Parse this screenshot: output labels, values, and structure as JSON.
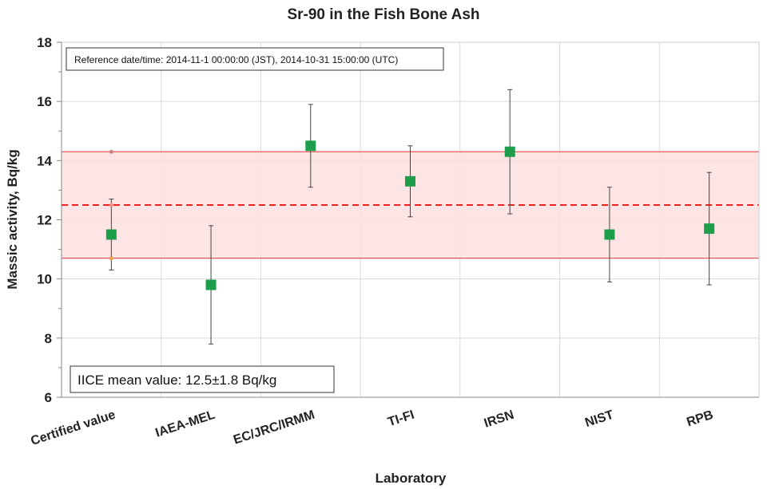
{
  "chart_data": {
    "type": "scatter",
    "title": "Sr-90 in the Fish Bone Ash",
    "xlabel": "Laboratory",
    "ylabel": "Massic activity, Bq/kg",
    "ylim": [
      6,
      18
    ],
    "yticks": [
      6,
      8,
      10,
      12,
      14,
      16,
      18
    ],
    "grid": true,
    "categories": [
      "Certified value",
      "IAEA-MEL",
      "EC/JRC/IRMM",
      "TI-FI",
      "IRSN",
      "NIST",
      "RPB"
    ],
    "series": [
      {
        "values": [
          11.5,
          9.8,
          14.5,
          13.3,
          14.3,
          11.5,
          11.7
        ],
        "err_low": [
          10.3,
          7.8,
          13.1,
          12.1,
          12.2,
          9.9,
          9.8
        ],
        "err_high": [
          12.7,
          11.8,
          15.9,
          14.5,
          16.4,
          13.1,
          13.6
        ],
        "color": "#1e9e4a"
      }
    ],
    "certified_markers": [
      {
        "value": 14.3,
        "color": "#d08080"
      },
      {
        "value": 12.5,
        "color": "#ff8a8a"
      },
      {
        "value": 10.7,
        "color": "#f0a040"
      }
    ],
    "mean_line": {
      "value": 12.5,
      "color": "#ee2222"
    },
    "band": {
      "low": 10.7,
      "high": 14.3,
      "fill": "#fde0e0",
      "stroke": "#e03030"
    },
    "annotations": {
      "reference": "Reference date/time: 2014-11-1  00:00:00 (JST), 2014-10-31 15:00:00 (UTC)",
      "mean": "IICE mean value: 12.5±1.8 Bq/kg"
    }
  }
}
